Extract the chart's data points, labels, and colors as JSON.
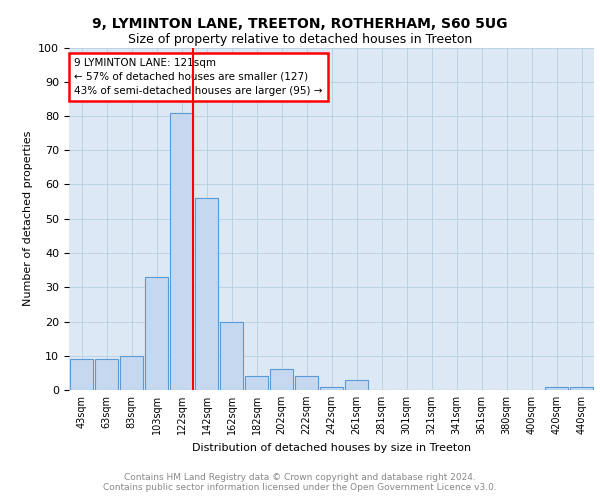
{
  "title_line1": "9, LYMINTON LANE, TREETON, ROTHERHAM, S60 5UG",
  "title_line2": "Size of property relative to detached houses in Treeton",
  "xlabel": "Distribution of detached houses by size in Treeton",
  "ylabel": "Number of detached properties",
  "bar_color": "#c5d8f0",
  "bar_edgecolor": "#5b9bd5",
  "vline_color": "red",
  "annotation_box_text": "9 LYMINTON LANE: 121sqm\n← 57% of detached houses are smaller (127)\n43% of semi-detached houses are larger (95) →",
  "annotation_box_edgecolor": "red",
  "annotation_box_facecolor": "white",
  "grid_color": "#b8cfe0",
  "background_color": "#dce8f3",
  "footer_text": "Contains HM Land Registry data © Crown copyright and database right 2024.\nContains public sector information licensed under the Open Government Licence v3.0.",
  "ylim": [
    0,
    100
  ],
  "yticks": [
    0,
    10,
    20,
    30,
    40,
    50,
    60,
    70,
    80,
    90,
    100
  ],
  "categories": [
    "43sqm",
    "63sqm",
    "83sqm",
    "103sqm",
    "122sqm",
    "142sqm",
    "162sqm",
    "182sqm",
    "202sqm",
    "222sqm",
    "242sqm",
    "261sqm",
    "281sqm",
    "301sqm",
    "321sqm",
    "341sqm",
    "361sqm",
    "380sqm",
    "400sqm",
    "420sqm",
    "440sqm"
  ],
  "values": [
    9,
    9,
    10,
    33,
    81,
    56,
    20,
    4,
    6,
    4,
    1,
    3,
    0,
    0,
    0,
    0,
    0,
    0,
    0,
    1,
    1
  ],
  "vline_category_index": 4,
  "title_fontsize": 10,
  "subtitle_fontsize": 9,
  "ylabel_fontsize": 8,
  "xlabel_fontsize": 8,
  "tick_fontsize": 8,
  "xtick_fontsize": 7,
  "footer_fontsize": 6.5,
  "footer_color": "#888888"
}
